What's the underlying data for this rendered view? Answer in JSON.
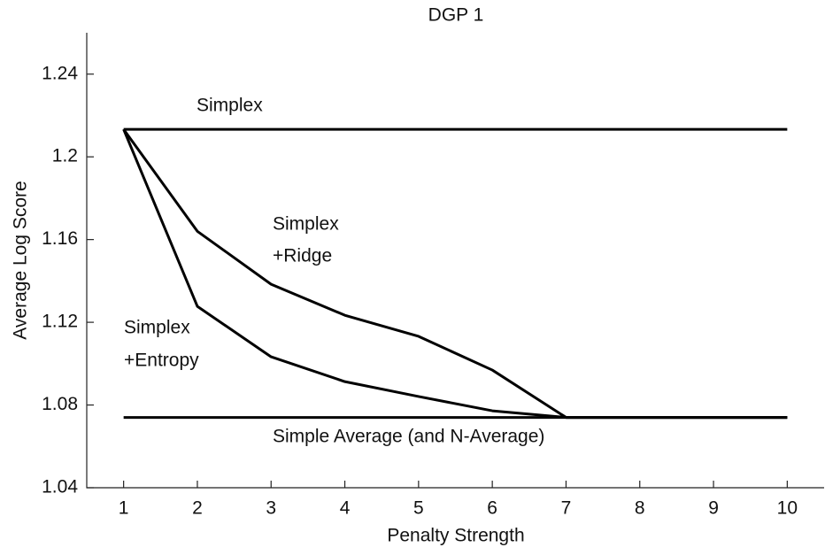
{
  "chart_data": {
    "type": "line",
    "title": "DGP 1",
    "x_label": "Penalty Strength",
    "y_label": "Average Log Score",
    "x": [
      1,
      2,
      3,
      4,
      5,
      6,
      7,
      8,
      9,
      10
    ],
    "series": [
      {
        "color": "#000000",
        "values": [
          1.2133,
          1.2133,
          1.2133,
          1.2133,
          1.2133,
          1.2133,
          1.2133,
          1.2133,
          1.2133,
          1.2133
        ]
      },
      {
        "color": "#000000",
        "values": [
          1.2133,
          1.164,
          1.1384,
          1.1234,
          1.1132,
          1.0969,
          1.074,
          1.074,
          1.074,
          1.074
        ]
      },
      {
        "color": "#000000",
        "values": [
          1.2133,
          1.1277,
          1.1033,
          1.0913,
          1.0841,
          1.0772,
          1.074,
          1.074,
          1.074,
          1.074
        ]
      },
      {
        "color": "#000000",
        "values": [
          1.074,
          1.074,
          1.074,
          1.074,
          1.074,
          1.074,
          1.074,
          1.074,
          1.074,
          1.074
        ]
      }
    ],
    "annotations": [
      "Simplex",
      "Simplex",
      "+Ridge",
      "Simplex",
      "+Entropy",
      "Simple Average (and N-Average)"
    ],
    "xlim": [
      0.5,
      10.5
    ],
    "xticks": [
      1,
      2,
      3,
      4,
      5,
      6,
      7,
      8,
      9,
      10
    ],
    "ylim": [
      1.04,
      1.26
    ],
    "yticks": [
      1.04,
      1.08,
      1.12,
      1.16,
      1.2,
      1.24
    ],
    "grid": false
  }
}
